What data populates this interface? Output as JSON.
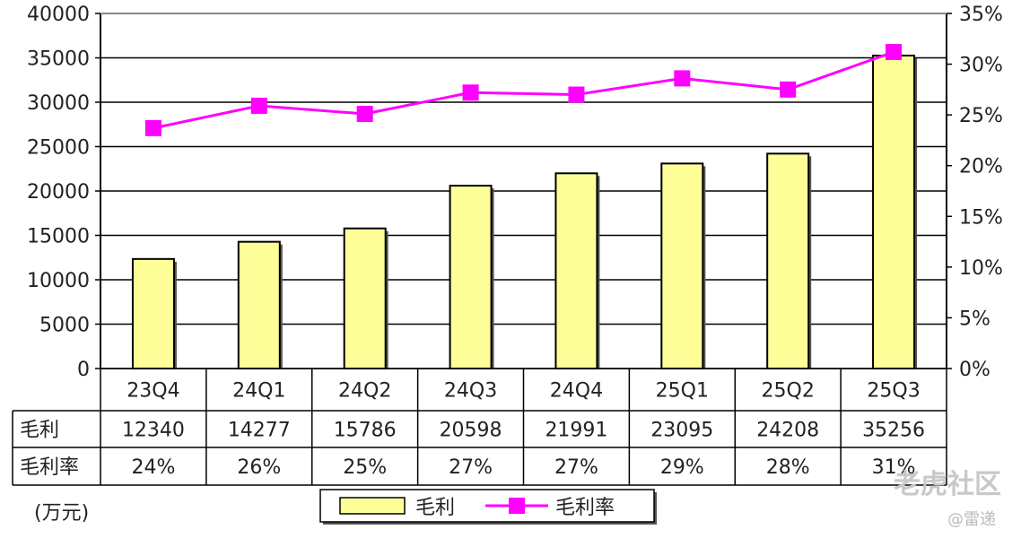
{
  "unit_label": "(万元)",
  "watermark": {
    "main": "老虎社区",
    "sub": "@雷递"
  },
  "chart_data": {
    "type": "bar",
    "categories": [
      "23Q4",
      "24Q1",
      "24Q2",
      "24Q3",
      "24Q4",
      "25Q1",
      "25Q2",
      "25Q3"
    ],
    "series": [
      {
        "name": "毛利",
        "type": "bar",
        "axis": "left",
        "values": [
          12340,
          14277,
          15786,
          20598,
          21991,
          23095,
          24208,
          35256
        ],
        "color": "#ffff99"
      },
      {
        "name": "毛利率",
        "type": "line",
        "axis": "right",
        "values": [
          0.237,
          0.259,
          0.251,
          0.272,
          0.27,
          0.286,
          0.275,
          0.312
        ],
        "color": "#ff00ff"
      }
    ],
    "y_left": {
      "ticks": [
        0,
        5000,
        10000,
        15000,
        20000,
        25000,
        30000,
        35000,
        40000
      ],
      "ylim": [
        0,
        40000
      ]
    },
    "y_right": {
      "ticks": [
        "0%",
        "5%",
        "10%",
        "15%",
        "20%",
        "25%",
        "30%",
        "35%"
      ],
      "ylim": [
        0,
        0.35
      ]
    },
    "grid": true,
    "table": {
      "rows": [
        {
          "label": "毛利",
          "cells": [
            "12340",
            "14277",
            "15786",
            "20598",
            "21991",
            "23095",
            "24208",
            "35256"
          ]
        },
        {
          "label": "毛利率",
          "cells": [
            "24%",
            "26%",
            "25%",
            "27%",
            "27%",
            "29%",
            "28%",
            "31%"
          ]
        }
      ]
    },
    "legend": {
      "position": "bottom-center",
      "entries": [
        "毛利",
        "毛利率"
      ]
    }
  }
}
